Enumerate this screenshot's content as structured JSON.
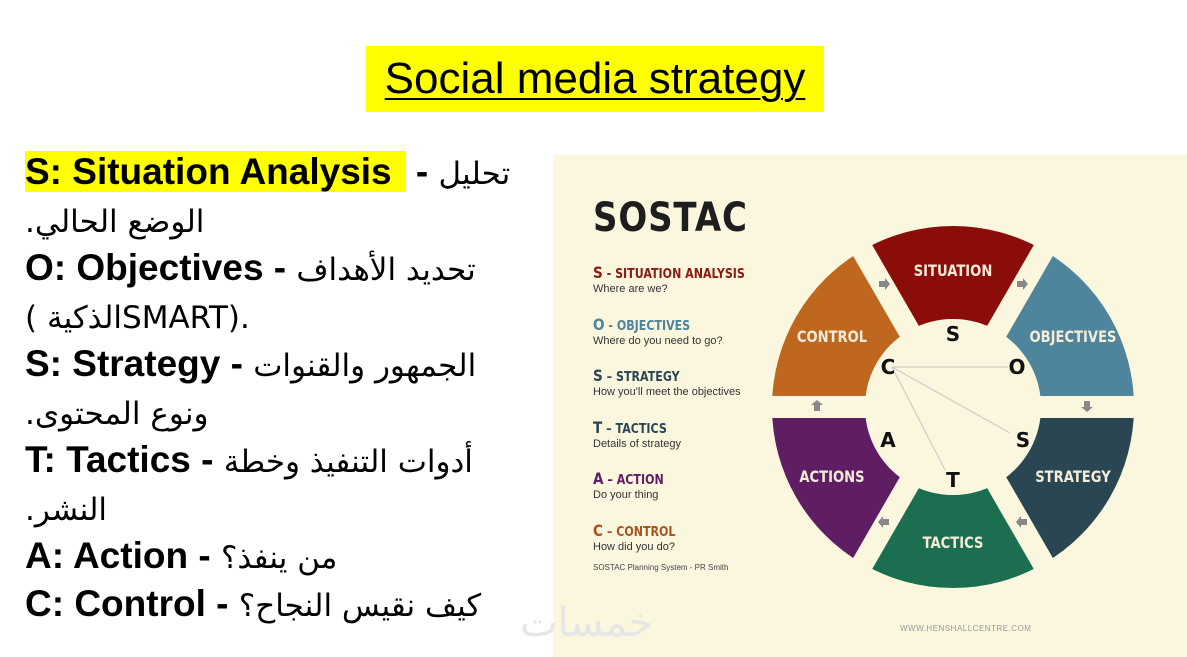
{
  "title": "Social media strategy",
  "lines": [
    {
      "en": "S: Situation Analysis",
      "sep": " - ",
      "ar": "تحليل",
      "highlight": true
    },
    {
      "ar": "الوضع الحالي."
    },
    {
      "en": "O: Objectives",
      "sep": " - ",
      "ar": "تحديد الأهداف"
    },
    {
      "ar": "( الذكيةSMART)."
    },
    {
      "en": "S: Strategy",
      "sep": " - ",
      "ar": "الجمهور والقنوات"
    },
    {
      "ar": "ونوع المحتوى."
    },
    {
      "en": "T: Tactics",
      "sep": " - ",
      "ar": "أدوات التنفيذ وخطة"
    },
    {
      "ar": "النشر."
    },
    {
      "en": "A: Action",
      "sep": " - ",
      "ar": "من ينفذ؟"
    },
    {
      "en": "C: Control",
      "sep": " - ",
      "ar": "كيف نقيس النجاح؟"
    }
  ],
  "image": {
    "heading": "SOSTAC",
    "items": [
      {
        "letter": "S",
        "sep": " - ",
        "name": "SITUATION ANALYSIS",
        "desc": "Where are we?",
        "color": "#8b1a12"
      },
      {
        "letter": "O",
        "sep": " - ",
        "name": "OBJECTIVES",
        "desc": "Where do you need to go?",
        "color": "#4e849c"
      },
      {
        "letter": "S",
        "sep": " – ",
        "name": "STRATEGY",
        "desc": "How you'll meet the objectives",
        "color": "#2a4653"
      },
      {
        "letter": "T",
        "sep": " – ",
        "name": "TACTICS",
        "desc": "Details of strategy",
        "color": "#2a4653"
      },
      {
        "letter": "A",
        "sep": " – ",
        "name": "ACTION",
        "desc": "Do your thing",
        "color": "#5f1e63"
      },
      {
        "letter": "C",
        "sep": " – ",
        "name": "CONTROL",
        "desc": "How did you do?",
        "color": "#a6521f"
      }
    ],
    "credit": "SOSTAC Planning System - PR Smith",
    "website": "WWW.HENSHALLCENTRE.COM",
    "wheel": [
      {
        "label": "SITUATION",
        "letter": "S",
        "color": "#8b0d0a"
      },
      {
        "label": "OBJECTIVES",
        "letter": "O",
        "color": "#4e849c"
      },
      {
        "label": "STRATEGY",
        "letter": "S",
        "color": "#2a4653"
      },
      {
        "label": "TACTICS",
        "letter": "T",
        "color": "#1b6e50"
      },
      {
        "label": "ACTIONS",
        "letter": "A",
        "color": "#5f1e63"
      },
      {
        "label": "CONTROL",
        "letter": "C",
        "color": "#bf661f"
      }
    ]
  },
  "watermark": "خمسات"
}
